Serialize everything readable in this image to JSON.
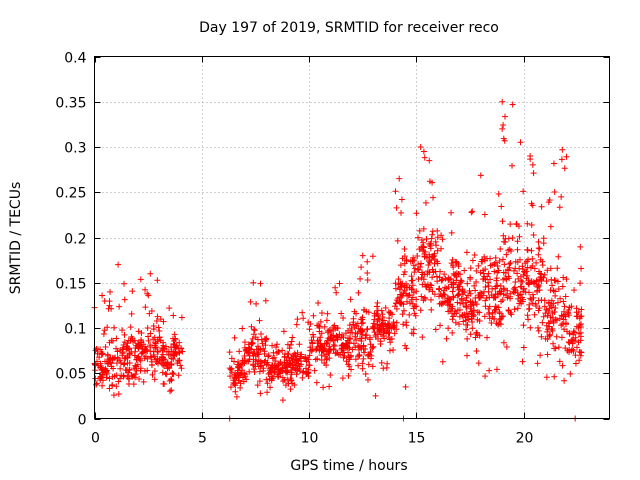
{
  "chart_data": {
    "type": "scatter",
    "title": "Day 197 of 2019, SRMTID for receiver reco",
    "xlabel": "GPS time / hours",
    "ylabel": "SRMTID / TECUs",
    "xlim": [
      0,
      24
    ],
    "ylim": [
      0,
      0.4
    ],
    "xticks": [
      0,
      5,
      10,
      15,
      20
    ],
    "xtick_labels": [
      "0",
      "5",
      "10",
      "15",
      "20"
    ],
    "yticks": [
      0,
      0.05,
      0.1,
      0.15,
      0.2,
      0.25,
      0.3,
      0.35,
      0.4
    ],
    "ytick_labels": [
      "0",
      "0.05",
      "0.1",
      "0.15",
      "0.2",
      "0.25",
      "0.3",
      "0.35",
      "0.4"
    ],
    "grid": true,
    "marker": "+",
    "color": "#ff0000",
    "series": [
      {
        "name": "SRMTID",
        "note": "Dense scatter of roughly 2000 observations; representative binned envelope (hour bins) plus notable outlier points",
        "hour_bins": [
          {
            "range": [
              0,
              1
            ],
            "low": 0.02,
            "typical": 0.06,
            "high": 0.14
          },
          {
            "range": [
              1,
              2
            ],
            "low": 0.02,
            "typical": 0.065,
            "high": 0.17
          },
          {
            "range": [
              2,
              3
            ],
            "low": 0.03,
            "typical": 0.075,
            "high": 0.16
          },
          {
            "range": [
              3,
              4.1
            ],
            "low": 0.03,
            "typical": 0.07,
            "high": 0.13
          },
          {
            "range": [
              6.3,
              7
            ],
            "low": 0.02,
            "typical": 0.05,
            "high": 0.1
          },
          {
            "range": [
              7,
              8
            ],
            "low": 0.025,
            "typical": 0.07,
            "high": 0.15
          },
          {
            "range": [
              8,
              9
            ],
            "low": 0.02,
            "typical": 0.055,
            "high": 0.1
          },
          {
            "range": [
              9,
              10
            ],
            "low": 0.02,
            "typical": 0.06,
            "high": 0.12
          },
          {
            "range": [
              10,
              11
            ],
            "low": 0.03,
            "typical": 0.08,
            "high": 0.13
          },
          {
            "range": [
              11,
              12
            ],
            "low": 0.035,
            "typical": 0.085,
            "high": 0.15
          },
          {
            "range": [
              12,
              13
            ],
            "low": 0.04,
            "typical": 0.085,
            "high": 0.18
          },
          {
            "range": [
              13,
              14
            ],
            "low": 0.045,
            "typical": 0.1,
            "high": 0.14
          },
          {
            "range": [
              14,
              15
            ],
            "low": 0.06,
            "typical": 0.14,
            "high": 0.27
          },
          {
            "range": [
              15,
              16
            ],
            "low": 0.08,
            "typical": 0.17,
            "high": 0.3
          },
          {
            "range": [
              16,
              17
            ],
            "low": 0.06,
            "typical": 0.14,
            "high": 0.23
          },
          {
            "range": [
              17,
              18
            ],
            "low": 0.05,
            "typical": 0.13,
            "high": 0.24
          },
          {
            "range": [
              18,
              19
            ],
            "low": 0.04,
            "typical": 0.14,
            "high": 0.27
          },
          {
            "range": [
              19,
              20
            ],
            "low": 0.05,
            "typical": 0.16,
            "high": 0.35
          },
          {
            "range": [
              20,
              21
            ],
            "low": 0.06,
            "typical": 0.15,
            "high": 0.29
          },
          {
            "range": [
              21,
              22
            ],
            "low": 0.04,
            "typical": 0.11,
            "high": 0.3
          },
          {
            "range": [
              22,
              22.7
            ],
            "low": 0.04,
            "typical": 0.09,
            "high": 0.19
          }
        ],
        "outliers": [
          {
            "x": 1.1,
            "y": 0.17
          },
          {
            "x": 2.6,
            "y": 0.16
          },
          {
            "x": 7.4,
            "y": 0.15
          },
          {
            "x": 12.5,
            "y": 0.18
          },
          {
            "x": 14.2,
            "y": 0.265
          },
          {
            "x": 15.2,
            "y": 0.3
          },
          {
            "x": 15.6,
            "y": 0.285
          },
          {
            "x": 19.0,
            "y": 0.35
          },
          {
            "x": 19.0,
            "y": 0.32
          },
          {
            "x": 20.3,
            "y": 0.29
          },
          {
            "x": 21.8,
            "y": 0.297
          },
          {
            "x": 13.1,
            "y": 0.025
          },
          {
            "x": 14.5,
            "y": 0.035
          },
          {
            "x": 6.3,
            "y": 0.0
          },
          {
            "x": 14.4,
            "y": 0.0
          },
          {
            "x": 22.4,
            "y": 0.0
          }
        ]
      }
    ]
  }
}
